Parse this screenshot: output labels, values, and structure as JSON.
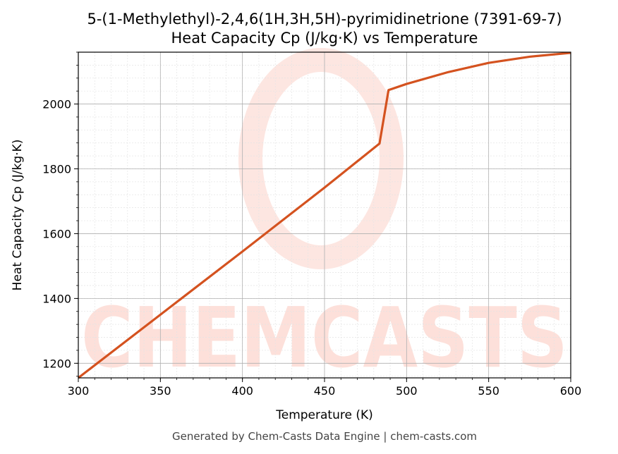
{
  "chart_data": {
    "type": "line",
    "title": "5-(1-Methylethyl)-2,4,6(1H,3H,5H)-pyrimidinetrione (7391-69-7)",
    "subtitle": "Heat Capacity Cp (J/kg·K) vs Temperature",
    "xlabel": "Temperature (K)",
    "ylabel": "Heat Capacity Cp (J/kg·K)",
    "xlim": [
      300,
      600
    ],
    "ylim": [
      1155,
      2160
    ],
    "xticks": [
      300,
      350,
      400,
      450,
      500,
      550,
      600
    ],
    "yticks": [
      1200,
      1400,
      1600,
      1800,
      2000
    ],
    "grid": true,
    "series": [
      {
        "color": "#d4521f",
        "x": [
          300,
          350,
          400,
          450,
          483.5,
          489,
          500,
          525,
          550,
          575,
          600
        ],
        "y": [
          1155,
          1350,
          1545,
          1742,
          1878,
          2043,
          2062,
          2098,
          2127,
          2146,
          2158
        ]
      }
    ]
  },
  "footer": "Generated by Chem-Casts Data Engine | chem-casts.com",
  "watermark": {
    "text": "CHEMCASTS",
    "color": "#fde0da"
  }
}
